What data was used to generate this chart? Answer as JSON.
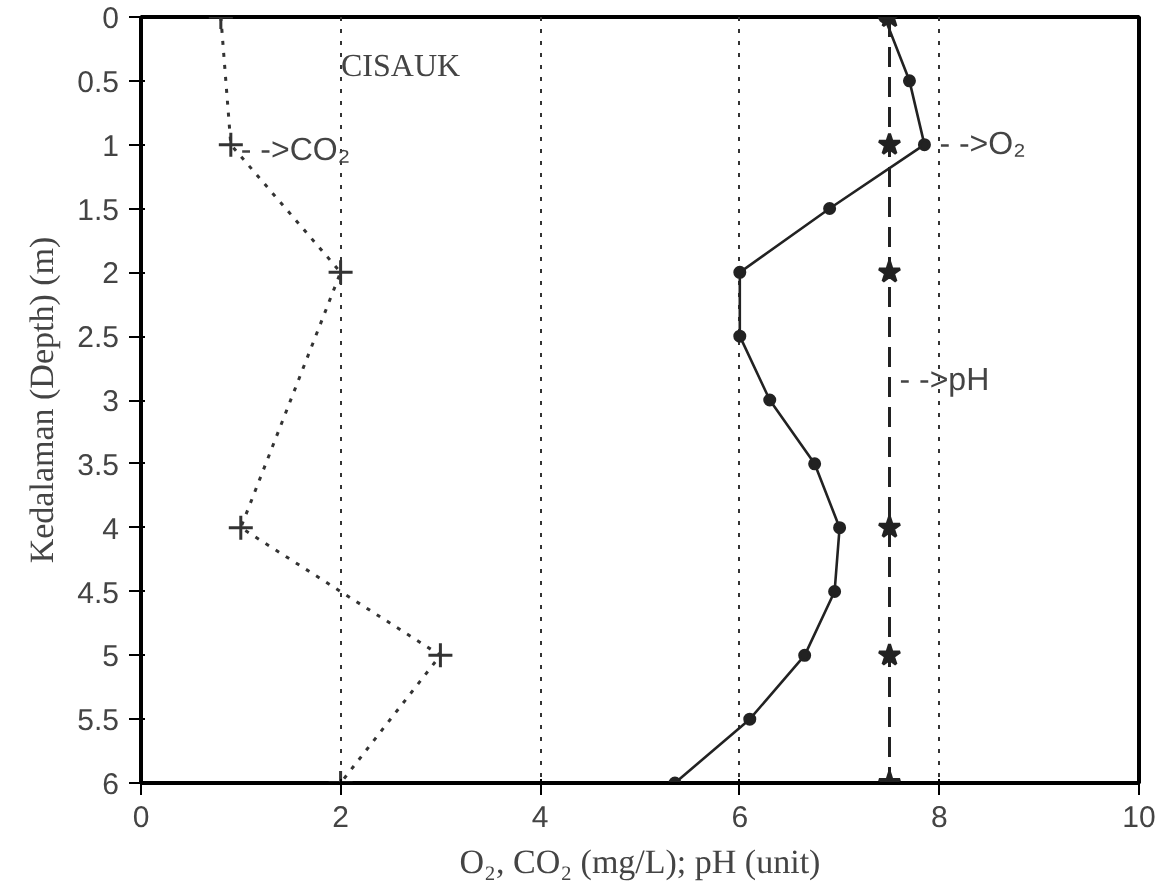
{
  "chart_data": {
    "type": "line",
    "xlabel": "O₂, CO₂ (mg/L); pH (unit)",
    "ylabel": "Kedalaman (Depth) (m)",
    "orientation": "horizontal",
    "series": [
      {
        "color": "#333333",
        "x": [
          0,
          1,
          2,
          4,
          5,
          6
        ],
        "values": [
          0.8,
          0.9,
          2,
          1,
          3,
          2
        ],
        "marker": "cross",
        "line_style": "dotted"
      },
      {
        "color": "#222222",
        "x": [
          0,
          0.5,
          1,
          1.5,
          2,
          2.5,
          3,
          3.5,
          4,
          4.5,
          5,
          5.5,
          6
        ],
        "values": [
          7.45,
          7.7,
          7.85,
          6.9,
          6.0,
          6.0,
          6.3,
          6.75,
          7.0,
          6.95,
          6.65,
          6.1,
          5.35
        ],
        "marker": "circle",
        "line_style": "solid"
      },
      {
        "color": "#222222",
        "x": [
          0,
          1,
          2,
          4,
          5,
          6
        ],
        "values": [
          7.5,
          7.5,
          7.5,
          7.5,
          7.5,
          7.5
        ],
        "marker": "star",
        "line_style": "dashed"
      }
    ],
    "xlim": [
      0,
      10
    ],
    "xticks": [
      0,
      2,
      4,
      6,
      8,
      10
    ],
    "ylim": [
      6,
      0
    ],
    "yticks": [
      0,
      0.5,
      1,
      1.5,
      2,
      2.5,
      3,
      3.5,
      4,
      4.5,
      5,
      5.5,
      6
    ],
    "grid": "x",
    "annotations": [
      "CISAUK",
      {
        "text": "- ->CO₂",
        "x": 1.0,
        "y": 1.05
      },
      {
        "text": "- ->O₂",
        "x": 8.0,
        "y": 1.0
      },
      {
        "text": "- ->pH",
        "x": 7.6,
        "y": 2.85
      }
    ]
  }
}
